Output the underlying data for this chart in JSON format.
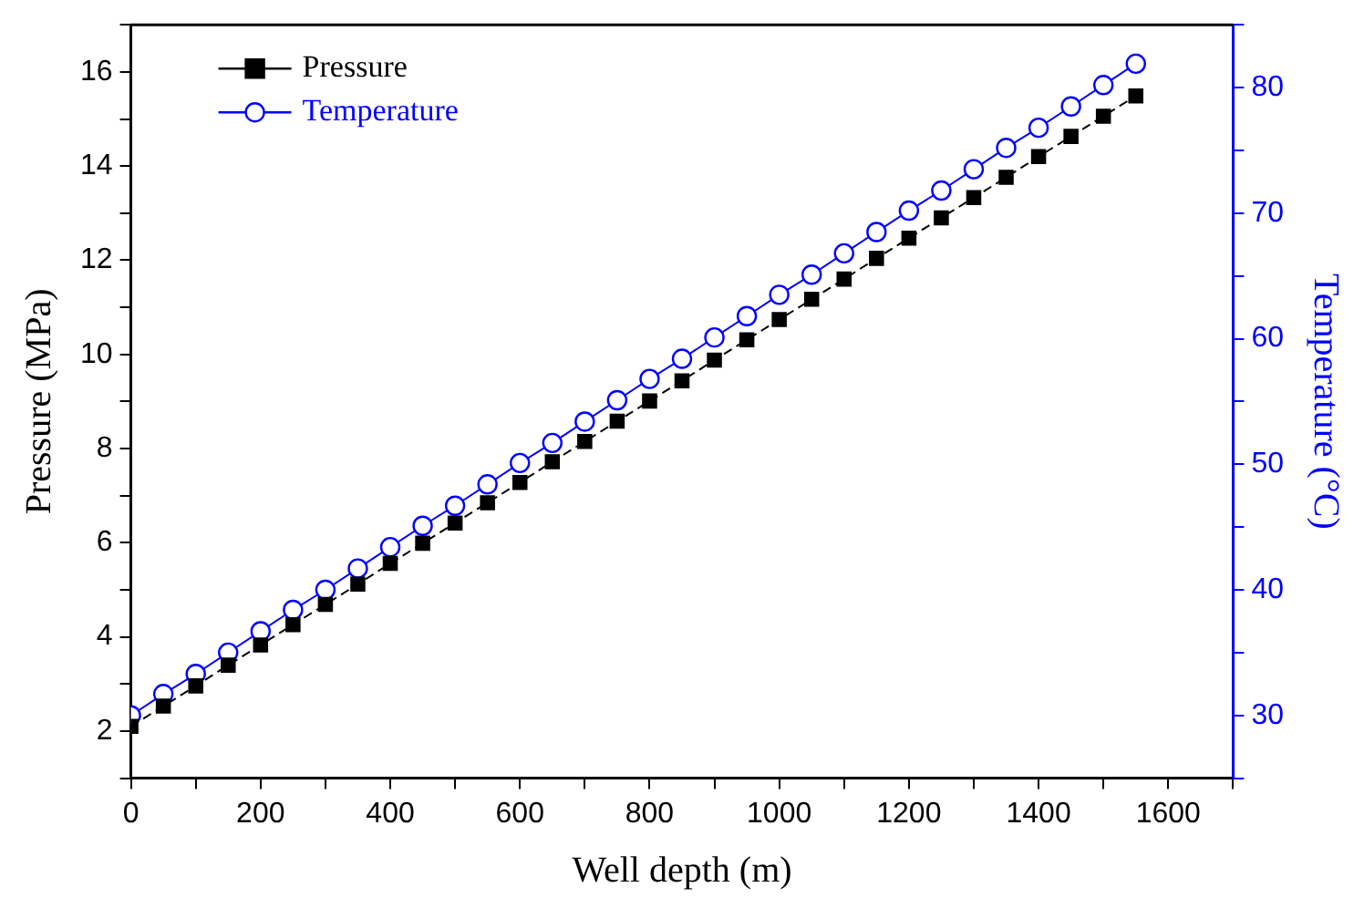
{
  "chart_data": {
    "type": "line",
    "xlabel": "Well depth (m)",
    "ylabel": "Pressure (MPa)",
    "y2label": "Temperature (°C)",
    "x": [
      0,
      50,
      100,
      150,
      200,
      250,
      300,
      350,
      400,
      450,
      500,
      550,
      600,
      650,
      700,
      750,
      800,
      850,
      900,
      950,
      1000,
      1050,
      1100,
      1150,
      1200,
      1250,
      1300,
      1350,
      1400,
      1450,
      1500,
      1550
    ],
    "series": [
      {
        "name": "Pressure",
        "color": "#000000",
        "marker": "square",
        "line_style": "dashed",
        "values": [
          2.1,
          2.53,
          2.96,
          3.4,
          3.83,
          4.26,
          4.69,
          5.12,
          5.56,
          5.99,
          6.42,
          6.85,
          7.28,
          7.72,
          8.15,
          8.58,
          9.01,
          9.44,
          9.88,
          10.31,
          10.74,
          11.17,
          11.6,
          12.04,
          12.47,
          12.9,
          13.33,
          13.76,
          14.2,
          14.63,
          15.06,
          15.49
        ]
      },
      {
        "name": "Temperature",
        "color": "#0000ff",
        "marker": "circle",
        "line_style": "solid",
        "axis": "y2",
        "values": [
          30.0,
          31.7,
          33.3,
          35.0,
          36.7,
          38.4,
          40.0,
          41.7,
          43.4,
          45.1,
          46.7,
          48.4,
          50.1,
          51.7,
          53.4,
          55.1,
          56.8,
          58.4,
          60.1,
          61.8,
          63.5,
          65.1,
          66.8,
          68.5,
          70.2,
          71.8,
          73.5,
          75.2,
          76.8,
          78.5,
          80.2,
          81.9
        ]
      }
    ],
    "xlim": [
      0,
      1700
    ],
    "xticks": [
      0,
      {
        "value": 100,
        "label": null
      },
      200,
      {
        "value": 300,
        "label": null
      },
      400,
      {
        "value": 500,
        "label": null
      },
      600,
      {
        "value": 700,
        "label": null
      },
      800,
      {
        "value": 900,
        "label": null
      },
      1000,
      {
        "value": 1100,
        "label": null
      },
      1200,
      {
        "value": 1300,
        "label": null
      },
      1400,
      {
        "value": 1500,
        "label": null
      },
      1600,
      {
        "value": 1700,
        "label": null
      }
    ],
    "ylim": [
      1,
      17
    ],
    "yticks": [
      {
        "value": 1,
        "label": null
      },
      2,
      {
        "value": 3,
        "label": null
      },
      4,
      {
        "value": 5,
        "label": null
      },
      6,
      {
        "value": 7,
        "label": null
      },
      8,
      {
        "value": 9,
        "label": null
      },
      10,
      {
        "value": 11,
        "label": null
      },
      12,
      {
        "value": 13,
        "label": null
      },
      14,
      {
        "value": 15,
        "label": null
      },
      16,
      {
        "value": 17,
        "label": null
      }
    ],
    "y2lim": [
      25,
      85
    ],
    "y2ticks": [
      {
        "value": 25,
        "label": null
      },
      30,
      {
        "value": 35,
        "label": null
      },
      40,
      {
        "value": 45,
        "label": null
      },
      50,
      {
        "value": 55,
        "label": null
      },
      60,
      {
        "value": 65,
        "label": null
      },
      70,
      {
        "value": 75,
        "label": null
      },
      80,
      {
        "value": 85,
        "label": null
      }
    ],
    "grid": false,
    "legend": "top left"
  }
}
